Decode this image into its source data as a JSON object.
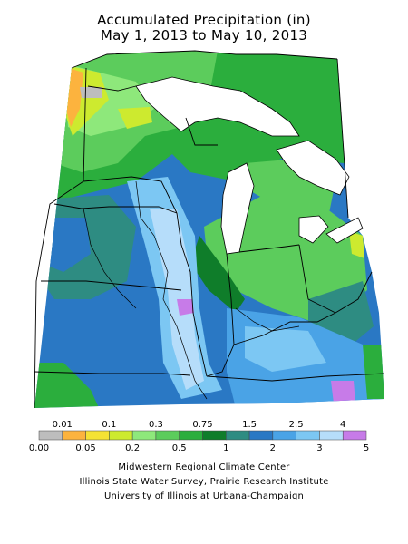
{
  "title": {
    "line1": "Accumulated Precipitation (in)",
    "line2": "May 1, 2013 to May 10, 2013"
  },
  "legend": {
    "top_labels": [
      "0.01",
      "0.1",
      "0.3",
      "0.75",
      "1.5",
      "2.5",
      "4"
    ],
    "bottom_labels": [
      "0.00",
      "0.05",
      "0.2",
      "0.5",
      "1",
      "2",
      "3",
      "5"
    ],
    "colors": [
      "#bdbdbd",
      "#fcb33e",
      "#f5e234",
      "#cdea2f",
      "#8ee87b",
      "#5ccc5c",
      "#2bae3d",
      "#0f7d2a",
      "#2e8c82",
      "#2a78c4",
      "#4aa3e6",
      "#7cc7f3",
      "#b6ddfa",
      "#c77be8"
    ]
  },
  "credits": {
    "line1": "Midwestern Regional Climate Center",
    "line2": "Illinois State Water Survey, Prairie Research Institute",
    "line3": "University of Illinois at Urbana-Champaign"
  }
}
